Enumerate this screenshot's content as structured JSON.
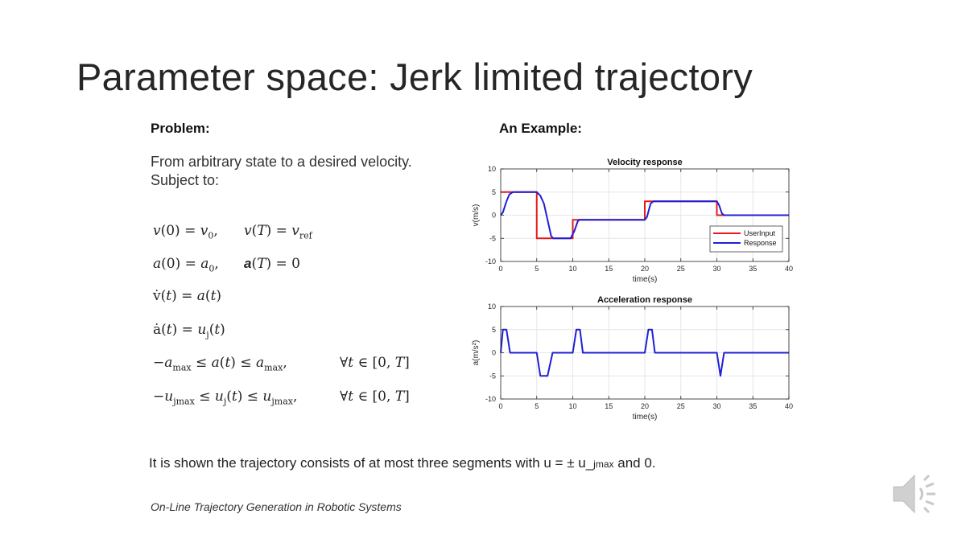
{
  "slide": {
    "title": "Parameter space: Jerk limited trajectory",
    "problem_heading": "Problem:",
    "example_heading": "An Example:",
    "problem_line1": "From arbitrary state to a desired velocity.",
    "problem_line2": "Subject to:",
    "footer_text_main": "It is shown the trajectory consists of at most three segments with u = ± u_",
    "footer_text_sub": "jmax",
    "footer_text_end": " and 0.",
    "citation": "On-Line Trajectory Generation in Robotic Systems",
    "icons": {
      "audio": "speaker-icon"
    }
  },
  "colors": {
    "input": "#e41a1c",
    "response": "#1f1fd6",
    "grid": "#e6e6e6",
    "axis": "#262626"
  },
  "chart_data": [
    {
      "type": "line",
      "title": "Velocity response",
      "xlabel": "time(s)",
      "ylabel": "v(m/s)",
      "xlim": [
        0,
        40
      ],
      "ylim": [
        -10,
        10
      ],
      "xticks": [
        0,
        5,
        10,
        15,
        20,
        25,
        30,
        35,
        40
      ],
      "yticks": [
        10,
        5,
        0,
        -5,
        -10
      ],
      "grid": true,
      "legend": "bottom-right",
      "series": [
        {
          "name": "UserInput",
          "color": "#e41a1c",
          "x": [
            0,
            5,
            5,
            10,
            10,
            20,
            20,
            30,
            30,
            40
          ],
          "y": [
            5,
            5,
            -5,
            -5,
            -1,
            -1,
            3,
            3,
            0,
            0
          ]
        },
        {
          "name": "Response",
          "color": "#1f1fd6",
          "x": [
            0,
            0.3,
            0.8,
            1.2,
            1.7,
            5,
            5.5,
            6,
            7,
            7.3,
            9.7,
            10.2,
            10.7,
            10.9,
            20,
            20.3,
            20.8,
            21.2,
            30,
            30.3,
            30.7,
            31,
            40
          ],
          "y": [
            0,
            0.6,
            3,
            4.5,
            5,
            5,
            4.2,
            2.5,
            -4.5,
            -5,
            -5,
            -3.5,
            -1.3,
            -1,
            -1,
            -0.4,
            2.5,
            3,
            3,
            2.2,
            0.4,
            0,
            0
          ]
        }
      ]
    },
    {
      "type": "line",
      "title": "Acceleration response",
      "xlabel": "time(s)",
      "ylabel": "a(m/s²)",
      "xlim": [
        0,
        40
      ],
      "ylim": [
        -10,
        10
      ],
      "xticks": [
        0,
        5,
        10,
        15,
        20,
        25,
        30,
        35,
        40
      ],
      "yticks": [
        10,
        5,
        0,
        -5,
        -10
      ],
      "grid": true,
      "series": [
        {
          "name": "",
          "color": "#1f1fd6",
          "x": [
            0,
            0.3,
            0.8,
            1.3,
            5,
            5.5,
            6.5,
            7.2,
            10,
            10.5,
            11,
            11.4,
            20,
            20.5,
            21,
            21.4,
            30,
            30.5,
            31,
            40
          ],
          "y": [
            0,
            5,
            5,
            0,
            0,
            -5,
            -5,
            0,
            0,
            5,
            5,
            0,
            0,
            5,
            5,
            0,
            0,
            -5,
            0,
            0
          ]
        }
      ]
    }
  ]
}
